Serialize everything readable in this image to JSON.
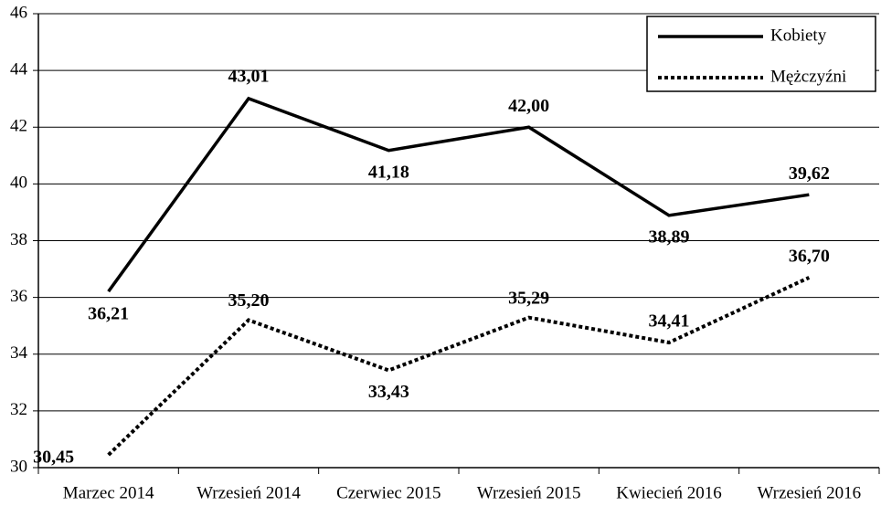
{
  "chart_data": {
    "type": "line",
    "categories": [
      "Marzec 2014",
      "Wrzesień 2014",
      "Czerwiec 2015",
      "Wrzesień 2015",
      "Kwiecień 2016",
      "Wrzesień 2016"
    ],
    "series": [
      {
        "name": "Kobiety",
        "color": "#000000",
        "style": "solid",
        "values": [
          36.21,
          43.01,
          41.18,
          42.0,
          38.89,
          39.62
        ],
        "value_labels": [
          "36,21",
          "43,01",
          "41,18",
          "42,00",
          "38,89",
          "39,62"
        ]
      },
      {
        "name": "Mężczyźni",
        "color": "#000000",
        "style": "dotted",
        "values": [
          30.45,
          35.2,
          33.43,
          35.29,
          34.41,
          36.7
        ],
        "value_labels": [
          "30,45",
          "35,20",
          "33,43",
          "35,29",
          "34,41",
          "36,70"
        ]
      }
    ],
    "ylim": [
      30,
      46
    ],
    "yticks": [
      30,
      32,
      34,
      36,
      38,
      40,
      42,
      44,
      46
    ],
    "grid": true,
    "legend": "upper right"
  }
}
